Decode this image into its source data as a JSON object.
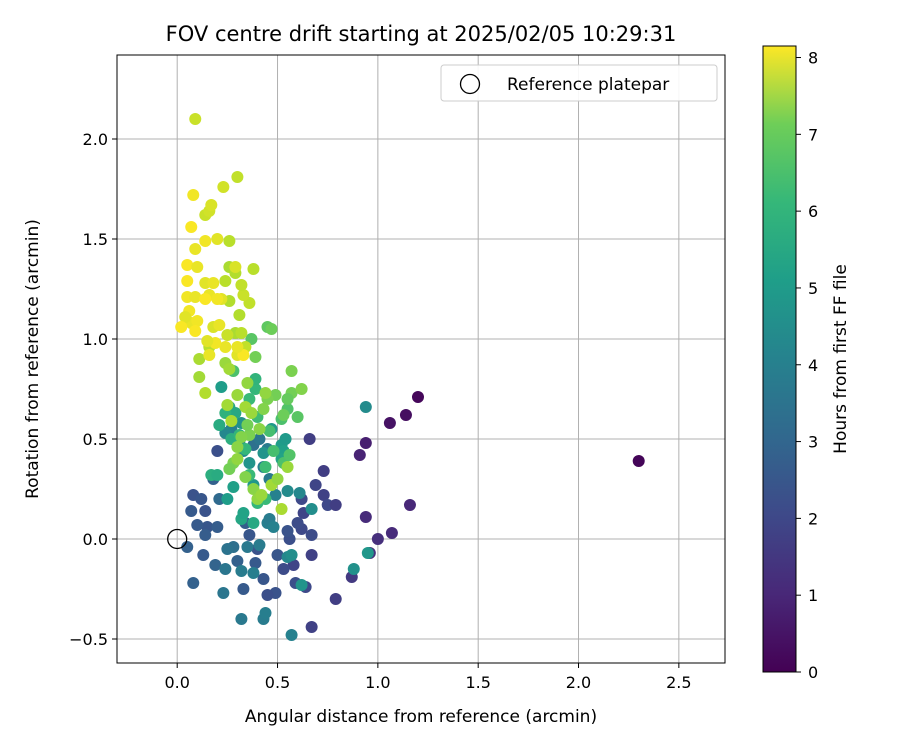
{
  "chart_data": {
    "type": "scatter",
    "title": "FOV centre drift starting at 2025/02/05 10:29:31",
    "xlabel": "Angular distance from reference (arcmin)",
    "ylabel": "Rotation from reference (arcmin)",
    "xlim": [
      -0.3,
      2.73
    ],
    "ylim": [
      -0.62,
      2.42
    ],
    "xticks": [
      0.0,
      0.5,
      1.0,
      1.5,
      2.0,
      2.5
    ],
    "xtick_labels": [
      "0.0",
      "0.5",
      "1.0",
      "1.5",
      "2.0",
      "2.5"
    ],
    "yticks": [
      -0.5,
      0.0,
      0.5,
      1.0,
      1.5,
      2.0
    ],
    "ytick_labels": [
      "−0.5",
      "0.0",
      "0.5",
      "1.0",
      "1.5",
      "2.0"
    ],
    "grid": true,
    "legend": {
      "position": "top-right",
      "label": "Reference platepar"
    },
    "reference_point": [
      0.0,
      0.0
    ],
    "colorbar": {
      "label": "Hours from first FF file",
      "colormap": "viridis",
      "range": [
        0,
        8.15
      ],
      "ticks": [
        0,
        1,
        2,
        3,
        4,
        5,
        6,
        7,
        8
      ],
      "tick_labels": [
        "0",
        "1",
        "2",
        "3",
        "4",
        "5",
        "6",
        "7",
        "8"
      ]
    },
    "points": [
      [
        2.3,
        0.39,
        0.1
      ],
      [
        1.2,
        0.71,
        0.15
      ],
      [
        1.14,
        0.62,
        0.3
      ],
      [
        1.06,
        0.58,
        0.4
      ],
      [
        0.94,
        0.48,
        0.7
      ],
      [
        0.91,
        0.42,
        0.8
      ],
      [
        1.16,
        0.17,
        0.9
      ],
      [
        0.94,
        0.11,
        1.0
      ],
      [
        1.0,
        0.0,
        1.1
      ],
      [
        1.07,
        0.03,
        1.0
      ],
      [
        0.96,
        -0.07,
        1.2
      ],
      [
        0.87,
        -0.19,
        1.4
      ],
      [
        0.79,
        -0.3,
        1.5
      ],
      [
        0.67,
        -0.44,
        1.6
      ],
      [
        0.73,
        0.34,
        1.5
      ],
      [
        0.69,
        0.27,
        1.7
      ],
      [
        0.73,
        0.22,
        1.6
      ],
      [
        0.75,
        0.17,
        1.8
      ],
      [
        0.79,
        0.17,
        1.5
      ],
      [
        0.66,
        0.5,
        1.5
      ],
      [
        0.67,
        0.02,
        1.9
      ],
      [
        0.62,
        0.05,
        1.8
      ],
      [
        0.63,
        0.13,
        1.7
      ],
      [
        0.62,
        0.2,
        1.8
      ],
      [
        0.67,
        -0.08,
        1.6
      ],
      [
        0.64,
        -0.24,
        1.8
      ],
      [
        0.59,
        -0.22,
        2.0
      ],
      [
        0.58,
        -0.13,
        1.7
      ],
      [
        0.53,
        -0.15,
        1.9
      ],
      [
        0.6,
        0.08,
        1.9
      ],
      [
        0.56,
        0.0,
        2.0
      ],
      [
        0.55,
        0.04,
        2.1
      ],
      [
        0.5,
        -0.08,
        2.2
      ],
      [
        0.49,
        -0.27,
        2.1
      ],
      [
        0.45,
        -0.28,
        2.0
      ],
      [
        0.43,
        -0.2,
        2.2
      ],
      [
        0.4,
        -0.05,
        2.1
      ],
      [
        0.36,
        0.02,
        2.2
      ],
      [
        0.34,
        0.08,
        2.4
      ],
      [
        0.39,
        -0.12,
        2.3
      ],
      [
        0.33,
        -0.25,
        2.3
      ],
      [
        0.3,
        -0.11,
        2.5
      ],
      [
        0.08,
        0.22,
        2.1
      ],
      [
        0.12,
        0.2,
        2.2
      ],
      [
        0.07,
        0.14,
        2.3
      ],
      [
        0.14,
        0.14,
        2.1
      ],
      [
        0.15,
        0.06,
        2.2
      ],
      [
        0.1,
        0.07,
        2.3
      ],
      [
        0.14,
        0.02,
        2.4
      ],
      [
        0.2,
        0.06,
        2.4
      ],
      [
        0.05,
        -0.04,
        2.5
      ],
      [
        0.13,
        -0.08,
        2.3
      ],
      [
        0.19,
        -0.13,
        2.6
      ],
      [
        0.08,
        -0.22,
        2.5
      ],
      [
        0.2,
        0.44,
        2.0
      ],
      [
        0.18,
        0.3,
        2.5
      ],
      [
        0.21,
        0.2,
        2.8
      ],
      [
        0.28,
        -0.04,
        3.0
      ],
      [
        0.25,
        -0.05,
        3.1
      ],
      [
        0.23,
        -0.27,
        3.2
      ],
      [
        0.32,
        -0.4,
        3.3
      ],
      [
        0.43,
        -0.4,
        3.4
      ],
      [
        0.44,
        -0.37,
        3.5
      ],
      [
        0.57,
        -0.48,
        3.6
      ],
      [
        0.24,
        -0.15,
        3.2
      ],
      [
        0.32,
        -0.16,
        3.4
      ],
      [
        0.38,
        -0.17,
        3.5
      ],
      [
        0.35,
        -0.04,
        3.3
      ],
      [
        0.41,
        -0.03,
        3.4
      ],
      [
        0.45,
        0.08,
        3.5
      ],
      [
        0.46,
        0.1,
        3.4
      ],
      [
        0.48,
        0.06,
        3.6
      ],
      [
        0.55,
        -0.09,
        3.8
      ],
      [
        0.57,
        -0.08,
        4.0
      ],
      [
        0.62,
        -0.23,
        4.2
      ],
      [
        0.67,
        0.15,
        4.0
      ],
      [
        0.61,
        0.23,
        3.8
      ],
      [
        0.55,
        0.24,
        3.9
      ],
      [
        0.88,
        -0.15,
        4.1
      ],
      [
        0.95,
        -0.07,
        4.3
      ],
      [
        0.94,
        0.66,
        3.9
      ],
      [
        0.38,
        0.47,
        3.0
      ],
      [
        0.41,
        0.5,
        3.2
      ],
      [
        0.45,
        0.45,
        3.4
      ],
      [
        0.43,
        0.36,
        3.5
      ],
      [
        0.46,
        0.3,
        3.3
      ],
      [
        0.49,
        0.22,
        3.6
      ],
      [
        0.27,
        0.55,
        3.6
      ],
      [
        0.24,
        0.53,
        3.8
      ],
      [
        0.31,
        0.48,
        4.0
      ],
      [
        0.33,
        0.44,
        3.9
      ],
      [
        0.32,
        0.58,
        4.1
      ],
      [
        0.36,
        0.38,
        4.2
      ],
      [
        0.38,
        0.27,
        4.3
      ],
      [
        0.43,
        0.43,
        4.2
      ],
      [
        0.47,
        0.55,
        4.4
      ],
      [
        0.52,
        0.47,
        4.5
      ],
      [
        0.53,
        0.44,
        4.6
      ],
      [
        0.52,
        0.4,
        4.7
      ],
      [
        0.54,
        0.5,
        4.4
      ],
      [
        0.25,
        0.2,
        4.5
      ],
      [
        0.28,
        0.26,
        4.6
      ],
      [
        0.32,
        0.1,
        4.8
      ],
      [
        0.33,
        0.13,
        4.7
      ],
      [
        0.38,
        0.08,
        4.9
      ],
      [
        0.26,
        0.66,
        4.8
      ],
      [
        0.22,
        0.76,
        4.5
      ],
      [
        0.29,
        0.63,
        4.9
      ],
      [
        0.17,
        0.32,
        5.1
      ],
      [
        0.2,
        0.32,
        5.0
      ],
      [
        0.21,
        0.57,
        5.0
      ],
      [
        0.24,
        0.63,
        5.2
      ],
      [
        0.27,
        0.5,
        5.1
      ],
      [
        0.31,
        0.52,
        5.3
      ],
      [
        0.34,
        0.45,
        5.4
      ],
      [
        0.36,
        0.32,
        5.5
      ],
      [
        0.4,
        0.18,
        5.4
      ],
      [
        0.44,
        0.2,
        5.5
      ],
      [
        0.44,
        0.36,
        5.6
      ],
      [
        0.48,
        0.44,
        5.7
      ],
      [
        0.53,
        0.38,
        5.8
      ],
      [
        0.56,
        0.42,
        5.9
      ],
      [
        0.6,
        0.61,
        6.0
      ],
      [
        0.55,
        0.65,
        5.9
      ],
      [
        0.52,
        0.6,
        5.8
      ],
      [
        0.46,
        0.54,
        5.7
      ],
      [
        0.4,
        0.61,
        5.6
      ],
      [
        0.36,
        0.7,
        5.5
      ],
      [
        0.39,
        0.75,
        5.4
      ],
      [
        0.39,
        0.8,
        5.3
      ],
      [
        0.28,
        0.84,
        5.8
      ],
      [
        0.37,
        1.0,
        6.0
      ],
      [
        0.45,
        1.06,
        6.1
      ],
      [
        0.47,
        1.05,
        6.3
      ],
      [
        0.39,
        0.91,
        6.4
      ],
      [
        0.57,
        0.84,
        6.5
      ],
      [
        0.57,
        0.73,
        6.4
      ],
      [
        0.62,
        0.75,
        6.6
      ],
      [
        0.55,
        0.7,
        6.2
      ],
      [
        0.53,
        0.62,
        6.3
      ],
      [
        0.49,
        0.72,
        6.4
      ],
      [
        0.45,
        0.7,
        6.5
      ],
      [
        0.43,
        0.65,
        6.6
      ],
      [
        0.41,
        0.55,
        6.7
      ],
      [
        0.36,
        0.52,
        6.5
      ],
      [
        0.35,
        0.57,
        6.4
      ],
      [
        0.32,
        0.51,
        6.6
      ],
      [
        0.3,
        0.46,
        6.7
      ],
      [
        0.28,
        0.38,
        6.5
      ],
      [
        0.26,
        0.35,
        6.4
      ],
      [
        0.3,
        0.4,
        6.8
      ],
      [
        0.34,
        0.31,
        6.6
      ],
      [
        0.38,
        0.25,
        6.7
      ],
      [
        0.4,
        0.2,
        6.8
      ],
      [
        0.42,
        0.22,
        6.9
      ],
      [
        0.47,
        0.27,
        7.0
      ],
      [
        0.5,
        0.3,
        6.8
      ],
      [
        0.55,
        0.36,
        6.9
      ],
      [
        0.52,
        0.15,
        7.1
      ],
      [
        0.3,
        0.72,
        6.9
      ],
      [
        0.25,
        0.67,
        7.0
      ],
      [
        0.27,
        0.59,
        7.1
      ],
      [
        0.34,
        0.66,
        7.0
      ],
      [
        0.37,
        0.63,
        6.9
      ],
      [
        0.44,
        0.73,
        6.8
      ],
      [
        0.35,
        0.78,
        6.8
      ],
      [
        0.24,
        0.88,
        6.9
      ],
      [
        0.26,
        0.85,
        7.0
      ],
      [
        0.11,
        0.81,
        7.0
      ],
      [
        0.11,
        0.9,
        7.1
      ],
      [
        0.14,
        0.73,
        7.2
      ],
      [
        0.16,
        0.96,
        7.3
      ],
      [
        0.29,
        1.03,
        7.1
      ],
      [
        0.31,
        1.12,
        7.2
      ],
      [
        0.32,
        1.03,
        7.3
      ],
      [
        0.34,
        0.96,
        7.4
      ],
      [
        0.25,
        1.02,
        7.5
      ],
      [
        0.36,
        1.18,
        7.4
      ],
      [
        0.33,
        1.22,
        7.5
      ],
      [
        0.26,
        1.19,
        7.2
      ],
      [
        0.24,
        1.29,
        7.3
      ],
      [
        0.26,
        1.36,
        7.1
      ],
      [
        0.29,
        1.33,
        7.2
      ],
      [
        0.32,
        1.27,
        7.4
      ],
      [
        0.38,
        1.35,
        7.3
      ],
      [
        0.26,
        1.49,
        7.3
      ],
      [
        0.3,
        1.81,
        7.4
      ],
      [
        0.23,
        1.76,
        7.6
      ],
      [
        0.14,
        1.62,
        7.5
      ],
      [
        0.16,
        1.64,
        7.6
      ],
      [
        0.17,
        1.67,
        7.7
      ],
      [
        0.2,
        1.5,
        7.8
      ],
      [
        0.09,
        1.45,
        7.9
      ],
      [
        0.09,
        2.1,
        7.5
      ],
      [
        0.08,
        1.72,
        8.0
      ],
      [
        0.07,
        1.56,
        8.1
      ],
      [
        0.14,
        1.49,
        8.0
      ],
      [
        0.05,
        1.37,
        8.1
      ],
      [
        0.1,
        1.36,
        7.9
      ],
      [
        0.14,
        1.28,
        7.8
      ],
      [
        0.18,
        1.28,
        7.9
      ],
      [
        0.22,
        1.2,
        7.8
      ],
      [
        0.05,
        1.29,
        8.1
      ],
      [
        0.05,
        1.21,
        8.0
      ],
      [
        0.09,
        1.21,
        7.9
      ],
      [
        0.16,
        1.22,
        7.9
      ],
      [
        0.2,
        1.2,
        8.0
      ],
      [
        0.14,
        1.2,
        8.1
      ],
      [
        0.07,
        1.08,
        7.9
      ],
      [
        0.1,
        1.09,
        8.0
      ],
      [
        0.06,
        1.14,
        8.0
      ],
      [
        0.04,
        1.11,
        7.8
      ],
      [
        0.09,
        1.04,
        8.1
      ],
      [
        0.02,
        1.06,
        8.1
      ],
      [
        0.18,
        1.06,
        7.7
      ],
      [
        0.21,
        1.07,
        7.9
      ],
      [
        0.24,
        0.96,
        7.9
      ],
      [
        0.19,
        0.98,
        8.0
      ],
      [
        0.15,
        0.99,
        7.8
      ],
      [
        0.16,
        0.92,
        7.9
      ],
      [
        0.3,
        0.92,
        7.8
      ],
      [
        0.33,
        0.92,
        8.1
      ],
      [
        0.3,
        0.96,
        7.9
      ],
      [
        0.29,
        1.36,
        7.7
      ]
    ]
  }
}
